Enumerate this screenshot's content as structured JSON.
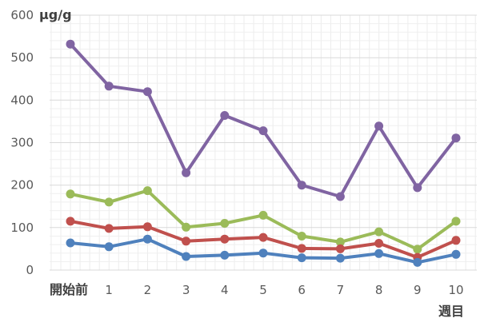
{
  "chart_data": {
    "type": "line",
    "title": "",
    "ylabel": "μg/g",
    "xlabel": "週目",
    "categories": [
      "開始前",
      "1",
      "2",
      "3",
      "4",
      "5",
      "6",
      "7",
      "8",
      "9",
      "10"
    ],
    "ylim": [
      0,
      600
    ],
    "yticks": [
      "0",
      "100",
      "200",
      "300",
      "400",
      "500",
      "600"
    ],
    "grid": true,
    "legend": "none",
    "series": [
      {
        "color": "#8064A2",
        "values": [
          532,
          433,
          420,
          229,
          364,
          328,
          200,
          173,
          339,
          194,
          311
        ]
      },
      {
        "color": "#9BBB59",
        "values": [
          179,
          160,
          187,
          101,
          110,
          129,
          80,
          66,
          90,
          49,
          115
        ]
      },
      {
        "color": "#C0504D",
        "values": [
          115,
          98,
          102,
          68,
          73,
          77,
          51,
          50,
          63,
          30,
          70
        ]
      },
      {
        "color": "#4F81BD",
        "values": [
          64,
          55,
          73,
          32,
          35,
          40,
          29,
          28,
          39,
          18,
          37
        ]
      }
    ]
  }
}
